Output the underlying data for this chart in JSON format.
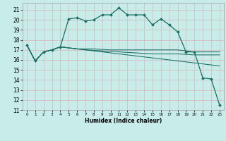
{
  "xlabel": "Humidex (Indice chaleur)",
  "background_color": "#c8ece9",
  "grid_color": "#d4b8b8",
  "line_color": "#1a6e62",
  "xlim": [
    -0.5,
    23.5
  ],
  "ylim": [
    11,
    21.7
  ],
  "yticks": [
    11,
    12,
    13,
    14,
    15,
    16,
    17,
    18,
    19,
    20,
    21
  ],
  "xticks": [
    0,
    1,
    2,
    3,
    4,
    5,
    6,
    7,
    8,
    9,
    10,
    11,
    12,
    13,
    14,
    15,
    16,
    17,
    18,
    19,
    20,
    21,
    22,
    23
  ],
  "series_main": [
    17.5,
    15.9,
    16.8,
    17.0,
    17.3,
    20.1,
    20.2,
    19.9,
    20.0,
    20.5,
    20.5,
    21.2,
    20.5,
    20.5,
    20.5,
    19.5,
    20.1,
    19.5,
    18.8,
    16.8,
    16.8,
    14.2,
    14.1,
    11.5
  ],
  "series_flat1": [
    17.5,
    15.9,
    16.8,
    17.0,
    17.3,
    17.2,
    17.1,
    17.1,
    17.1,
    17.05,
    17.0,
    17.0,
    17.0,
    17.0,
    17.0,
    17.0,
    17.0,
    17.0,
    17.0,
    16.9,
    16.8,
    16.8,
    16.8,
    16.8
  ],
  "series_flat2": [
    17.5,
    15.9,
    16.8,
    17.0,
    17.3,
    17.2,
    17.1,
    17.0,
    16.95,
    16.9,
    16.85,
    16.8,
    16.75,
    16.7,
    16.65,
    16.6,
    16.6,
    16.6,
    16.6,
    16.55,
    16.5,
    16.5,
    16.5,
    16.5
  ],
  "series_diag": [
    17.5,
    15.9,
    16.8,
    17.0,
    17.3,
    17.2,
    17.1,
    17.0,
    16.9,
    16.8,
    16.7,
    16.6,
    16.5,
    16.4,
    16.3,
    16.2,
    16.1,
    16.0,
    15.9,
    15.8,
    15.7,
    15.6,
    15.5,
    15.4
  ]
}
